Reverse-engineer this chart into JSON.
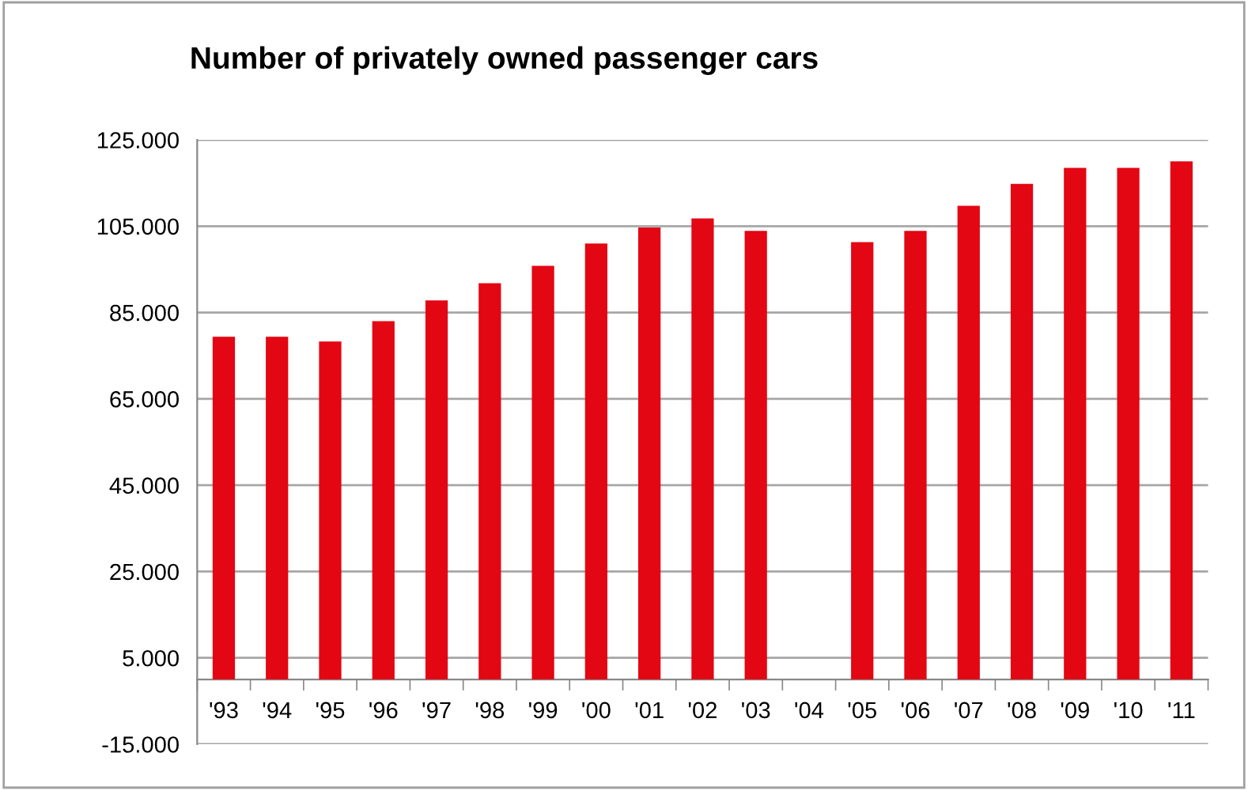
{
  "chart_data": {
    "type": "bar",
    "title": "Number of privately owned passenger cars",
    "categories": [
      "'93",
      "'94",
      "'95",
      "'96",
      "'97",
      "'98",
      "'99",
      "'00",
      "'01",
      "'02",
      "'03",
      "'04",
      "'05",
      "'06",
      "'07",
      "'08",
      "'09",
      "'10",
      "'11"
    ],
    "values": [
      79400,
      79400,
      78300,
      83000,
      87800,
      91800,
      95800,
      101000,
      104700,
      106800,
      103900,
      null,
      101300,
      103900,
      109700,
      114800,
      118500,
      118500,
      120000
    ],
    "color": "#e30613",
    "ylim": [
      -15000,
      125000
    ],
    "yticks": [
      {
        "value": -15000,
        "label": "-15.000"
      },
      {
        "value": 5000,
        "label": "5.000"
      },
      {
        "value": 25000,
        "label": "25.000"
      },
      {
        "value": 45000,
        "label": "45.000"
      },
      {
        "value": 65000,
        "label": "65.000"
      },
      {
        "value": 85000,
        "label": "85.000"
      },
      {
        "value": 105000,
        "label": "105.000"
      },
      {
        "value": 125000,
        "label": "125.000"
      }
    ],
    "grid": "y",
    "legend": false
  }
}
